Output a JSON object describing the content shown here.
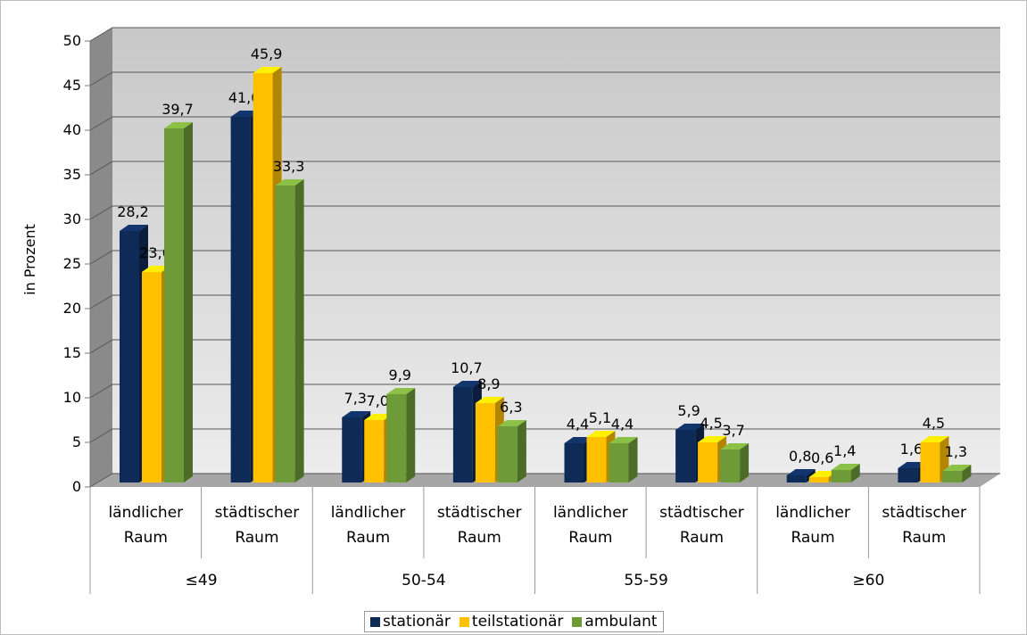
{
  "chart_data": {
    "type": "bar3d",
    "y_label": "in Prozent",
    "categories": [
      "ländlicher Raum",
      "städtischer Raum",
      "ländlicher Raum",
      "städtischer Raum",
      "ländlicher Raum",
      "städtischer Raum",
      "ländlicher Raum",
      "städtischer Raum"
    ],
    "groups": [
      "≤49",
      "50-54",
      "55-59",
      "≥60"
    ],
    "series": [
      {
        "name": "stationär",
        "color": "#0e2a57",
        "values": [
          28.2,
          41.0,
          7.3,
          10.7,
          4.4,
          5.9,
          0.8,
          1.6
        ],
        "value_labels": [
          "28,2",
          "41,0",
          "7,3",
          "10,7",
          "4,4",
          "5,9",
          "0,8",
          "1,6"
        ]
      },
      {
        "name": "teilstationär",
        "color": "#ffc000",
        "values": [
          23.6,
          45.9,
          7.0,
          8.9,
          5.1,
          4.5,
          0.6,
          4.5
        ],
        "value_labels": [
          "23,6",
          "45,9",
          "7,0",
          "8,9",
          "5,1",
          "4,5",
          "0,6",
          "4,5"
        ]
      },
      {
        "name": "ambulant",
        "color": "#6e9a38",
        "values": [
          39.7,
          33.3,
          9.9,
          6.3,
          4.4,
          3.7,
          1.4,
          1.3
        ],
        "value_labels": [
          "39,7",
          "33,3",
          "9,9",
          "6,3",
          "4,4",
          "3,7",
          "1,4",
          "1,3"
        ]
      }
    ],
    "ylim": [
      0,
      50
    ],
    "yticks": [
      0,
      5,
      10,
      15,
      20,
      25,
      30,
      35,
      40,
      45,
      50
    ],
    "grid": true,
    "legend": "bottom"
  }
}
